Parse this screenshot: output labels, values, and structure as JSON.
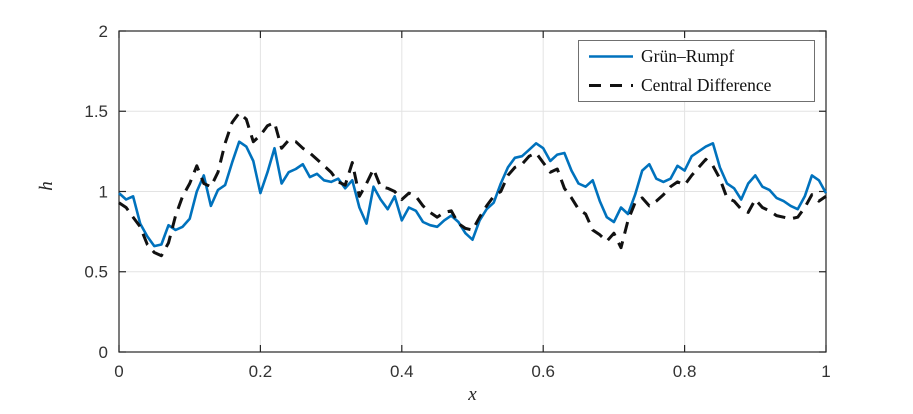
{
  "chart_data": {
    "type": "line",
    "title": "",
    "xlabel": "x",
    "ylabel": "h",
    "xlim": [
      0,
      1
    ],
    "ylim": [
      0,
      2
    ],
    "xticks": [
      0,
      0.2,
      0.4,
      0.6,
      0.8,
      1
    ],
    "xtick_labels": [
      "0",
      "0.2",
      "0.4",
      "0.6",
      "0.8",
      "1"
    ],
    "yticks": [
      0,
      0.5,
      1,
      1.5,
      2
    ],
    "ytick_labels": [
      "0",
      "0.5",
      "1",
      "1.5",
      "2"
    ],
    "grid": true,
    "box": true,
    "legend_position": "top-right",
    "x_start": 0,
    "x_step": 0.01,
    "colors": {
      "grun_rumpf": "#0072BD",
      "central_difference": "#111111",
      "grid": "#e3e3e3",
      "axis": "#262626"
    },
    "series": [
      {
        "name": "Grün–Rumpf",
        "color": "#0072BD",
        "style": "solid",
        "width": 2.6,
        "values": [
          0.99,
          0.95,
          0.97,
          0.8,
          0.72,
          0.66,
          0.67,
          0.79,
          0.76,
          0.78,
          0.83,
          1.0,
          1.1,
          0.91,
          1.01,
          1.04,
          1.18,
          1.31,
          1.28,
          1.19,
          0.99,
          1.12,
          1.27,
          1.05,
          1.12,
          1.14,
          1.17,
          1.09,
          1.11,
          1.07,
          1.06,
          1.08,
          1.02,
          1.07,
          0.9,
          0.8,
          1.03,
          0.95,
          0.89,
          0.97,
          0.82,
          0.9,
          0.88,
          0.81,
          0.79,
          0.78,
          0.82,
          0.85,
          0.81,
          0.74,
          0.7,
          0.82,
          0.89,
          0.93,
          1.05,
          1.15,
          1.21,
          1.22,
          1.26,
          1.3,
          1.27,
          1.19,
          1.23,
          1.24,
          1.13,
          1.05,
          1.03,
          1.07,
          0.94,
          0.84,
          0.81,
          0.9,
          0.86,
          0.98,
          1.13,
          1.17,
          1.08,
          1.06,
          1.08,
          1.16,
          1.13,
          1.22,
          1.25,
          1.28,
          1.3,
          1.15,
          1.05,
          1.02,
          0.95,
          1.05,
          1.1,
          1.03,
          1.01,
          0.96,
          0.94,
          0.91,
          0.89,
          0.97,
          1.1,
          1.07,
          0.99
        ]
      },
      {
        "name": "Central Difference",
        "color": "#111111",
        "style": "dashed",
        "width": 3,
        "values": [
          0.93,
          0.9,
          0.84,
          0.78,
          0.67,
          0.62,
          0.6,
          0.68,
          0.85,
          0.97,
          1.05,
          1.16,
          1.05,
          1.03,
          1.12,
          1.3,
          1.43,
          1.49,
          1.45,
          1.31,
          1.35,
          1.41,
          1.43,
          1.27,
          1.32,
          1.31,
          1.27,
          1.24,
          1.2,
          1.16,
          1.12,
          1.06,
          1.04,
          1.18,
          0.97,
          1.05,
          1.14,
          1.03,
          1.02,
          1.0,
          0.95,
          0.99,
          0.97,
          0.91,
          0.87,
          0.84,
          0.87,
          0.88,
          0.8,
          0.77,
          0.76,
          0.84,
          0.91,
          0.97,
          1.0,
          1.1,
          1.15,
          1.17,
          1.22,
          1.24,
          1.18,
          1.12,
          1.14,
          1.02,
          0.96,
          0.89,
          0.86,
          0.76,
          0.73,
          0.69,
          0.74,
          0.65,
          0.82,
          0.93,
          0.96,
          0.91,
          0.94,
          0.98,
          1.03,
          1.06,
          1.04,
          1.1,
          1.15,
          1.2,
          1.16,
          1.08,
          0.96,
          0.94,
          0.89,
          0.87,
          0.95,
          0.9,
          0.88,
          0.85,
          0.84,
          0.83,
          0.84,
          0.9,
          0.98,
          0.94,
          0.97
        ]
      }
    ]
  }
}
